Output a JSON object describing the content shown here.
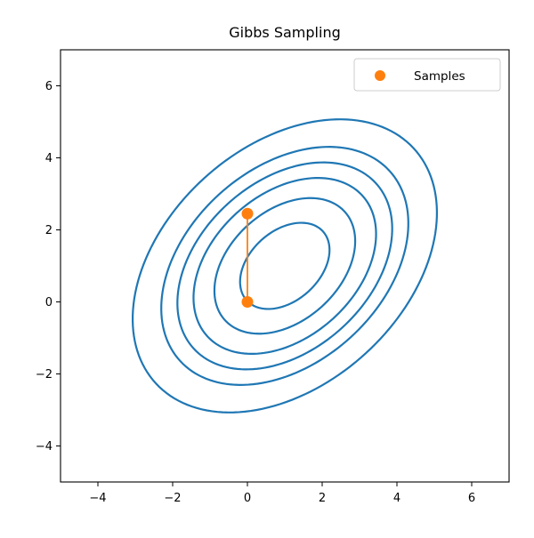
{
  "chart_data": {
    "type": "scatter",
    "title": "Gibbs Sampling",
    "xlabel": "",
    "ylabel": "",
    "xlim": [
      -5,
      7
    ],
    "ylim": [
      -5,
      7
    ],
    "xticks": [
      -4,
      -2,
      0,
      2,
      4,
      6
    ],
    "yticks": [
      -4,
      -2,
      0,
      2,
      4,
      6
    ],
    "xtick_labels": [
      "−4",
      "−2",
      "0",
      "2",
      "4",
      "6"
    ],
    "ytick_labels": [
      "−4",
      "−2",
      "0",
      "2",
      "4",
      "6"
    ],
    "grid": false,
    "legend": {
      "position": "top-right",
      "entries": [
        "Samples"
      ]
    },
    "series": [
      {
        "name": "Samples",
        "color": "#ff7f0e",
        "x": [
          0.0,
          0.0
        ],
        "y": [
          0.0,
          2.45
        ]
      }
    ],
    "contours": {
      "color": "#1f77b4",
      "center": [
        1.0,
        1.0
      ],
      "angle_deg": 45,
      "levels": [
        {
          "semi_major": 1.4,
          "semi_minor": 0.95
        },
        {
          "semi_major": 2.2,
          "semi_minor": 1.5
        },
        {
          "semi_major": 2.85,
          "semi_minor": 1.95
        },
        {
          "semi_major": 3.35,
          "semi_minor": 2.3
        },
        {
          "semi_major": 3.85,
          "semi_minor": 2.65
        },
        {
          "semi_major": 4.75,
          "semi_minor": 3.25
        }
      ]
    }
  }
}
